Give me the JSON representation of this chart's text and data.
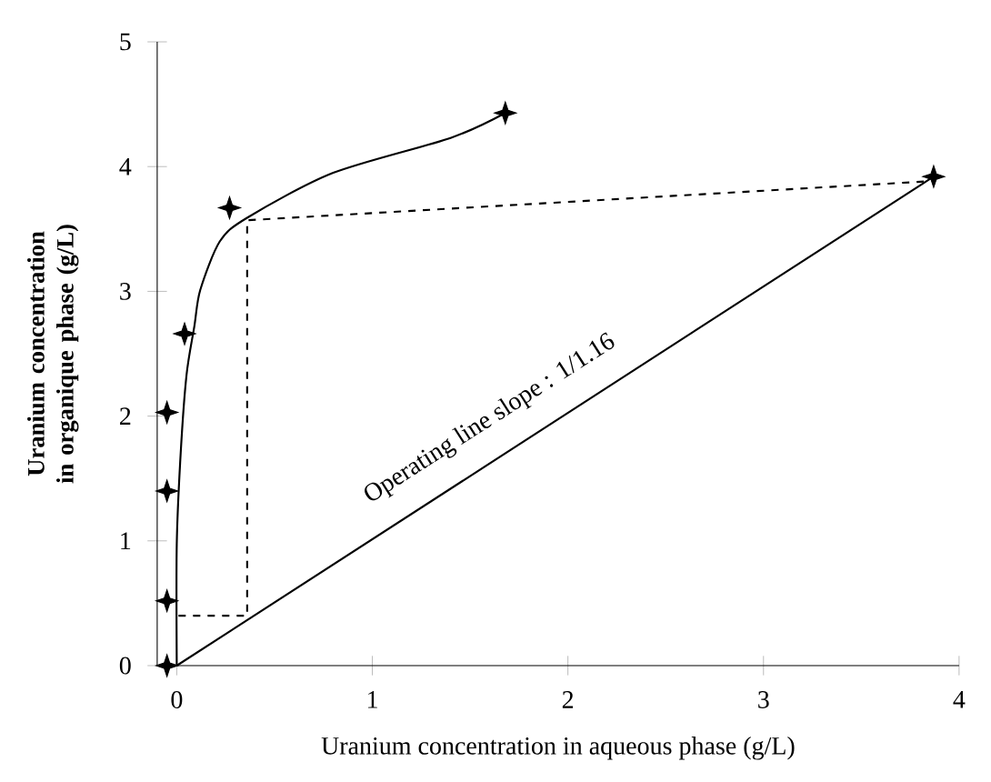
{
  "chart_data": {
    "type": "line",
    "xlabel": "Uranium concentration in aqueous phase (g/L)",
    "ylabel": "Uranium concentration in organique phase (g/L)",
    "xlim": [
      -0.1,
      4
    ],
    "ylim": [
      0,
      5
    ],
    "xticks": [
      0,
      1,
      2,
      3,
      4
    ],
    "yticks": [
      0,
      1,
      2,
      3,
      4,
      5
    ],
    "grid": false,
    "series": [
      {
        "color": "#000000",
        "line_style": "solid",
        "marker": "none",
        "x": [
          0.0,
          0.0,
          0.02,
          0.05,
          0.09,
          0.12,
          0.22,
          0.36,
          0.8,
          1.4,
          1.68
        ],
        "values": [
          0.0,
          0.97,
          1.7,
          2.33,
          2.72,
          3.01,
          3.4,
          3.59,
          3.95,
          4.23,
          4.43
        ]
      },
      {
        "type": "scatter",
        "color": "#000000",
        "marker": "star",
        "x": [
          -0.05,
          -0.05,
          -0.05,
          -0.05,
          0.04,
          0.27,
          1.68,
          3.87
        ],
        "values": [
          0.0,
          0.52,
          1.4,
          2.03,
          2.66,
          3.67,
          4.43,
          3.92
        ]
      },
      {
        "color": "#000000",
        "line_style": "solid",
        "marker": "none",
        "x": [
          0.0,
          3.87
        ],
        "values": [
          0.0,
          3.92
        ]
      },
      {
        "color": "#000000",
        "line_style": "dashed",
        "marker": "none",
        "x": [
          3.82,
          0.36,
          0.36,
          0.0
        ],
        "values": [
          3.88,
          3.57,
          0.4,
          0.4
        ]
      }
    ],
    "annotations": [
      "Operating line slope : 1/1.16"
    ]
  }
}
